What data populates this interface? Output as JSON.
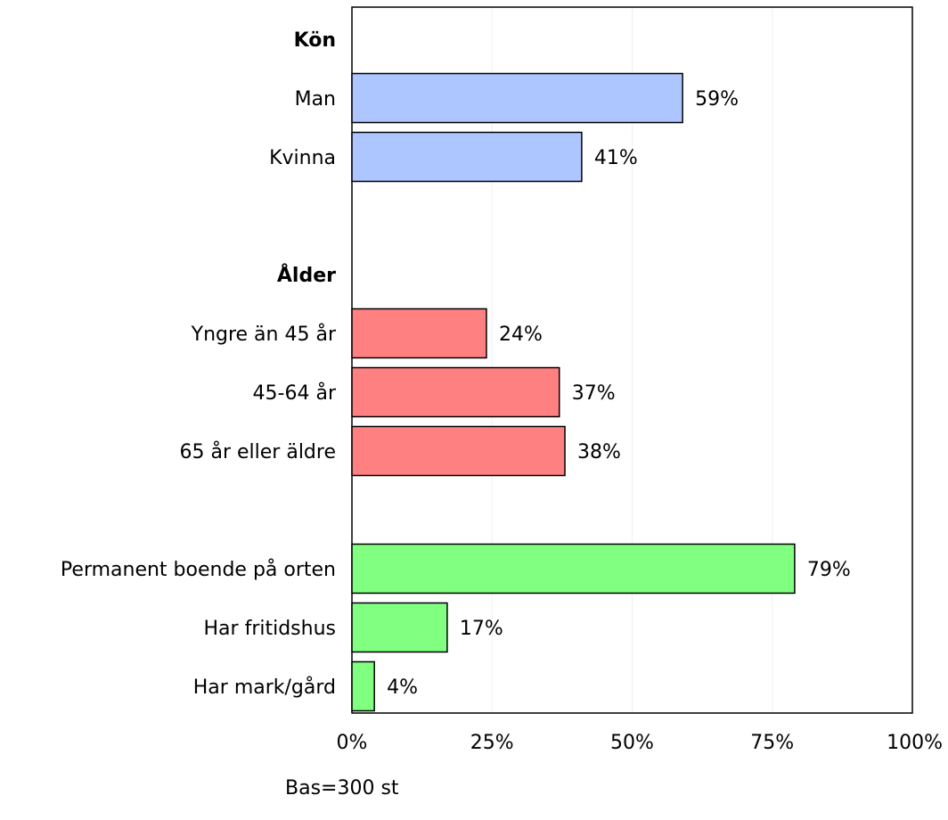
{
  "chart_data": {
    "type": "bar",
    "orientation": "horizontal",
    "xlim": [
      0,
      100
    ],
    "x_ticks": [
      "0%",
      "25%",
      "50%",
      "75%",
      "100%"
    ],
    "grid": "vertical, faint",
    "legend": "none",
    "groups": [
      {
        "header": "Kön",
        "color": "#aec6ff",
        "items": [
          {
            "label": "Man",
            "value": 59,
            "value_label": "59%"
          },
          {
            "label": "Kvinna",
            "value": 41,
            "value_label": "41%"
          }
        ]
      },
      {
        "header": "Ålder",
        "color": "#ff8080",
        "items": [
          {
            "label": "Yngre än 45 år",
            "value": 24,
            "value_label": "24%"
          },
          {
            "label": "45-64 år",
            "value": 37,
            "value_label": "37%"
          },
          {
            "label": "65 år eller äldre",
            "value": 38,
            "value_label": "38%"
          }
        ]
      },
      {
        "header": "",
        "color": "#80ff80",
        "items": [
          {
            "label": "Permanent boende på orten",
            "value": 79,
            "value_label": "79%"
          },
          {
            "label": "Har fritidshus",
            "value": 17,
            "value_label": "17%"
          },
          {
            "label": "Har mark/gård",
            "value": 4,
            "value_label": "4%"
          }
        ]
      }
    ],
    "footnote": "Bas=300 st"
  }
}
